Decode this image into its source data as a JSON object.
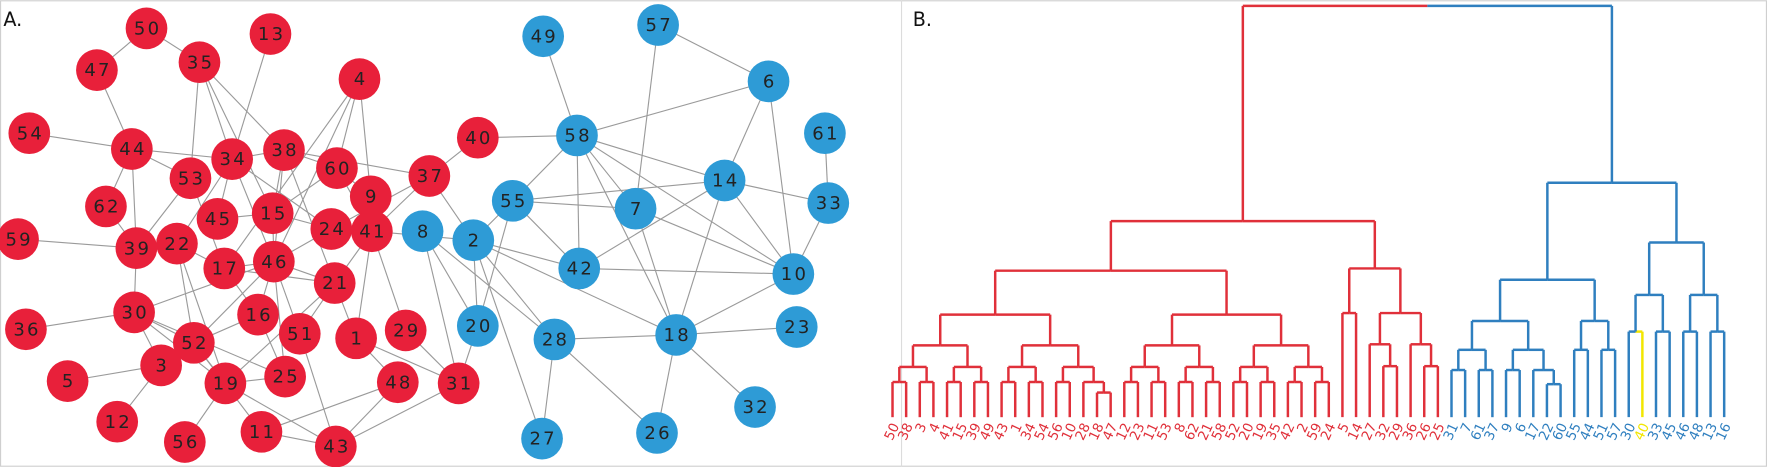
{
  "panels": [
    {
      "label": "A.",
      "groups": [
        {
          "color": "#e8203a",
          "nodes": [
            "50",
            "13",
            "47",
            "35",
            "4",
            "54",
            "44",
            "34",
            "38",
            "60",
            "40",
            "37",
            "53",
            "62",
            "45",
            "15",
            "9",
            "24",
            "41",
            "59",
            "39",
            "22",
            "17",
            "46",
            "21",
            "36",
            "30",
            "16",
            "51",
            "1",
            "29",
            "52",
            "3",
            "5",
            "19",
            "25",
            "48",
            "31",
            "12",
            "56",
            "11",
            "43"
          ]
        },
        {
          "color": "#2e9bd6",
          "nodes": [
            "49",
            "57",
            "6",
            "61",
            "58",
            "14",
            "33",
            "55",
            "7",
            "8",
            "2",
            "42",
            "10",
            "20",
            "28",
            "18",
            "23",
            "32",
            "27",
            "26"
          ]
        }
      ],
      "highlight": {
        "label": "40",
        "color": "#ffe600"
      }
    },
    {
      "label": "B.",
      "leaf_groups": [
        {
          "color": "#e0303a",
          "leaves": [
            "50",
            "38",
            "3",
            "4",
            "41",
            "15",
            "39",
            "49",
            "43",
            "1",
            "34",
            "54",
            "56",
            "10",
            "28",
            "18",
            "47",
            "12",
            "23",
            "11",
            "53",
            "8",
            "62",
            "21",
            "58",
            "52",
            "20",
            "19",
            "35",
            "42",
            "2",
            "59",
            "24",
            "5",
            "14",
            "27",
            "32",
            "29",
            "36",
            "26",
            "25"
          ]
        },
        {
          "color": "#2f7fbf",
          "leaves": [
            "31",
            "7",
            "61",
            "37",
            "9",
            "6",
            "17",
            "22",
            "60",
            "55",
            "44",
            "51",
            "57",
            "30",
            "40",
            "33",
            "45",
            "46",
            "48",
            "13",
            "16"
          ]
        }
      ],
      "highlight": {
        "label": "40",
        "color": "#f2e600"
      }
    }
  ]
}
